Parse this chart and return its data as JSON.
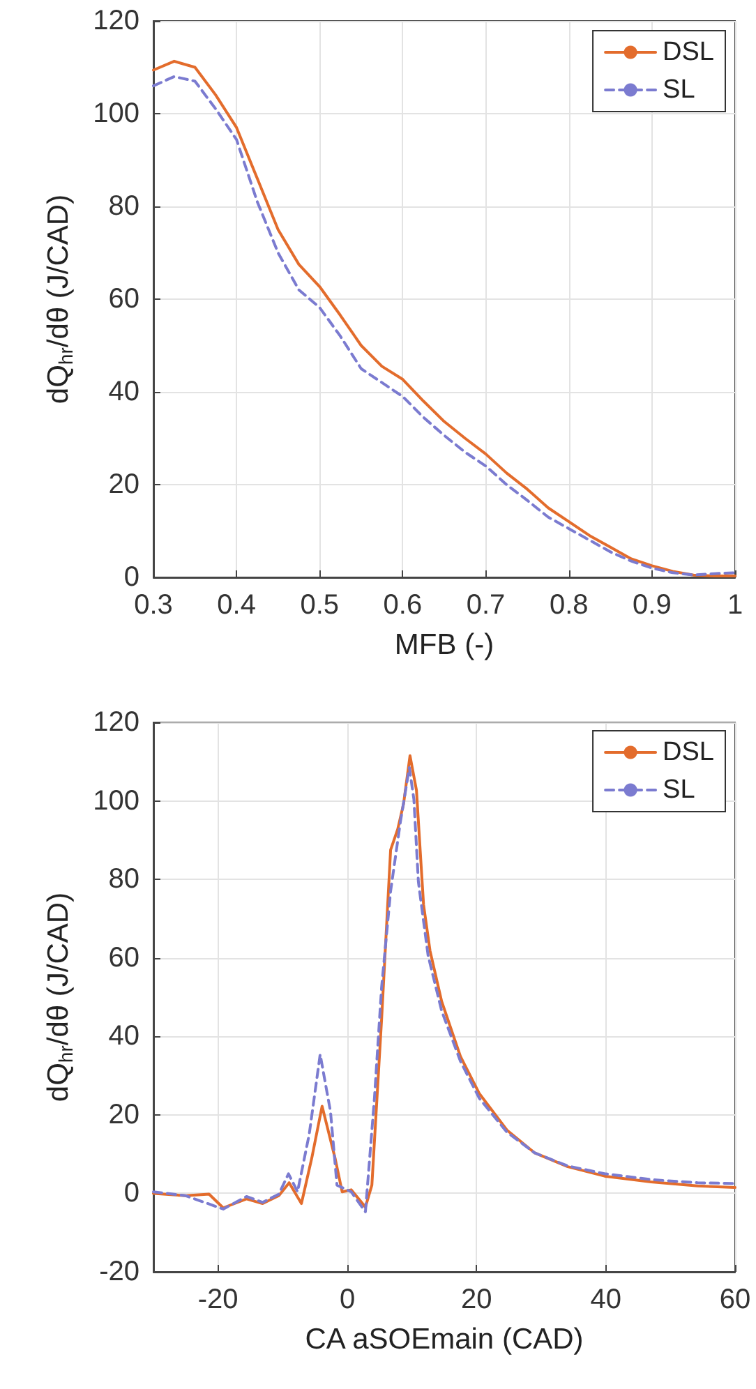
{
  "chart_data": [
    {
      "type": "line",
      "xlabel": "MFB (-)",
      "ylabel": "dQ$_{hr}$/dθ (J/CAD)",
      "xlim": [
        0.3,
        1
      ],
      "xticks": [
        0.3,
        0.4,
        0.5,
        0.6,
        0.7,
        0.8,
        0.9,
        1
      ],
      "ylim": [
        0,
        120
      ],
      "yticks": [
        0,
        20,
        40,
        60,
        80,
        100,
        120
      ],
      "grid": true,
      "legend": "top right",
      "series": [
        {
          "name": "DSL",
          "color": "#e36c2c",
          "line_style": "solid",
          "x": [
            0.3,
            0.325,
            0.35,
            0.375,
            0.4,
            0.425,
            0.45,
            0.475,
            0.5,
            0.525,
            0.55,
            0.575,
            0.6,
            0.625,
            0.65,
            0.675,
            0.7,
            0.725,
            0.75,
            0.775,
            0.8,
            0.825,
            0.85,
            0.875,
            0.9,
            0.925,
            0.95,
            0.975,
            1
          ],
          "values": [
            109.4,
            111.3,
            110,
            104,
            97,
            86,
            75,
            67.5,
            62.7,
            56.5,
            50,
            45.5,
            42.7,
            38,
            33.6,
            30,
            26.6,
            22.5,
            19,
            15,
            12,
            9,
            6.5,
            4,
            2.5,
            1.3,
            0.5,
            0.3,
            0.3
          ]
        },
        {
          "name": "SL",
          "color": "#7b7bd0",
          "line_style": "dashed",
          "x": [
            0.3,
            0.325,
            0.35,
            0.375,
            0.4,
            0.425,
            0.45,
            0.475,
            0.5,
            0.525,
            0.55,
            0.575,
            0.6,
            0.625,
            0.65,
            0.675,
            0.7,
            0.725,
            0.75,
            0.775,
            0.8,
            0.825,
            0.85,
            0.875,
            0.9,
            0.925,
            0.95,
            0.975,
            1
          ],
          "values": [
            106,
            108,
            107,
            101,
            94.4,
            81,
            70,
            62,
            58.2,
            52,
            45,
            42,
            39,
            34.5,
            30.6,
            27,
            24,
            20,
            16.6,
            13,
            10.5,
            8,
            5.5,
            3.5,
            2,
            1,
            0.5,
            0.8,
            1
          ]
        }
      ]
    },
    {
      "type": "line",
      "xlabel": "CA aSOEmain (CAD)",
      "ylabel": "dQ$_{hr}$/dθ (J/CAD)",
      "xlim": [
        -30,
        60
      ],
      "xticks": [
        -20,
        0,
        20,
        40,
        60
      ],
      "ylim": [
        -20,
        120
      ],
      "yticks": [
        -20,
        0,
        20,
        40,
        60,
        80,
        100,
        120
      ],
      "grid": true,
      "legend": "top right",
      "series": [
        {
          "name": "DSL",
          "color": "#e36c2c",
          "line_style": "solid",
          "x": [
            -30,
            -25,
            -21.4,
            -19.2,
            -15.6,
            -13.1,
            -10.6,
            -9,
            -7.1,
            -5.5,
            -3.9,
            -1.9,
            -0.8,
            0.6,
            2.8,
            3.8,
            5.3,
            6.7,
            7.8,
            8.7,
            9.7,
            10.7,
            11.8,
            12.8,
            14.6,
            17.5,
            20.4,
            24.7,
            29,
            34.1,
            39.8,
            47,
            54.2,
            60
          ],
          "values": [
            0,
            -0.6,
            -0.2,
            -3.7,
            -1.4,
            -2.6,
            -0.6,
            2.7,
            -2.6,
            9,
            22.2,
            9,
            0.4,
            0.9,
            -3.5,
            2.1,
            44.2,
            87.5,
            92.8,
            99.2,
            111.5,
            102.7,
            73.5,
            61.8,
            48.9,
            34.9,
            25.5,
            16.1,
            10.3,
            6.8,
            4.4,
            2.9,
            1.9,
            1.5
          ]
        },
        {
          "name": "SL",
          "color": "#7b7bd0",
          "line_style": "dashed",
          "x": [
            -30,
            -25,
            -19.2,
            -15.6,
            -13.1,
            -10.6,
            -9.1,
            -7.7,
            -5.9,
            -4.2,
            -2.6,
            -1.6,
            0.6,
            2.8,
            4.2,
            5.3,
            6.7,
            8.2,
            9.6,
            10.3,
            11,
            12.5,
            14.6,
            17.5,
            20.4,
            24.7,
            29,
            34.1,
            39.8,
            47,
            54.2,
            60
          ],
          "values": [
            0.4,
            -0.6,
            -4,
            -0.8,
            -2.3,
            -0.2,
            5,
            0.4,
            15,
            35.4,
            20.8,
            2.1,
            0.4,
            -4.7,
            24.3,
            52.4,
            77,
            94.5,
            108.5,
            100.4,
            79.3,
            60.6,
            46.5,
            33.7,
            24.3,
            15.6,
            10.3,
            7,
            5,
            3.5,
            2.7,
            2.5
          ]
        }
      ]
    }
  ]
}
